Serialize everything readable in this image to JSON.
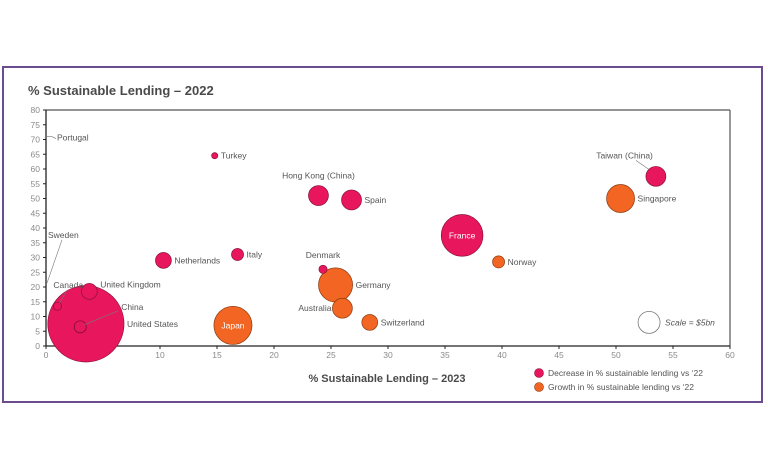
{
  "chart_data": {
    "type": "scatter",
    "subtype": "bubble",
    "title": "% Sustainable Lending – 2022",
    "ylabel": "% Sustainable Lending – 2022",
    "xlabel": "% Sustainable Lending – 2023",
    "xlim": [
      0,
      60
    ],
    "ylim": [
      0,
      80
    ],
    "xticks": [
      "0",
      "5",
      "10",
      "15",
      "20",
      "25",
      "30",
      "35",
      "40",
      "45",
      "50",
      "55",
      "60"
    ],
    "yticks": [
      "0",
      "5",
      "10",
      "15",
      "20",
      "25",
      "30",
      "35",
      "40",
      "45",
      "50",
      "55",
      "60",
      "65",
      "70",
      "75",
      "80"
    ],
    "grid": false,
    "colors": {
      "decrease": "#e8175d",
      "growth": "#f26522",
      "outline_decrease": "#8a1038",
      "outline_growth": "#8a3a10"
    },
    "legend": {
      "placement": "bottom-right",
      "entries": [
        {
          "key": "decrease",
          "label": "Decrease in % sustainable lending vs ‘22"
        },
        {
          "key": "growth",
          "label": "Growth in % sustainable lending vs ‘22"
        }
      ]
    },
    "scale_note": {
      "label": "Scale = $5bn",
      "size": 5
    },
    "points": [
      {
        "name": "Portugal",
        "x": 0,
        "y": 71,
        "size": 0,
        "group": "decrease",
        "label_pos": "leader-right"
      },
      {
        "name": "Sweden",
        "x": 0,
        "y": 21,
        "size": 0,
        "group": "decrease",
        "label_pos": "leader-up"
      },
      {
        "name": "Canada",
        "x": 1,
        "y": 13.5,
        "size": 0.7,
        "group": "decrease",
        "label_pos": "leader-up"
      },
      {
        "name": "United States",
        "x": 3.5,
        "y": 7.5,
        "size": 60,
        "group": "decrease",
        "label_pos": "right"
      },
      {
        "name": "China",
        "x": 3,
        "y": 6.5,
        "size": 1.5,
        "group": "decrease-hollow",
        "label_pos": "leader-upright"
      },
      {
        "name": "United Kingdom",
        "x": 3.8,
        "y": 18.5,
        "size": 2.6,
        "group": "decrease",
        "label_pos": "right-up"
      },
      {
        "name": "Netherlands",
        "x": 10.3,
        "y": 29,
        "size": 2.6,
        "group": "decrease",
        "label_pos": "right"
      },
      {
        "name": "Turkey",
        "x": 14.8,
        "y": 64.5,
        "size": 0.4,
        "group": "decrease",
        "label_pos": "right"
      },
      {
        "name": "Italy",
        "x": 16.8,
        "y": 31,
        "size": 1.5,
        "group": "decrease",
        "label_pos": "right"
      },
      {
        "name": "Japan",
        "x": 16.4,
        "y": 7,
        "size": 15,
        "group": "growth",
        "label_pos": "inside"
      },
      {
        "name": "Hong Kong (China)",
        "x": 23.9,
        "y": 51,
        "size": 4.1,
        "group": "decrease",
        "label_pos": "above"
      },
      {
        "name": "Spain",
        "x": 26.8,
        "y": 49.5,
        "size": 4.1,
        "group": "decrease",
        "label_pos": "right"
      },
      {
        "name": "Denmark",
        "x": 24.3,
        "y": 26,
        "size": 0.7,
        "group": "decrease",
        "label_pos": "above"
      },
      {
        "name": "Germany",
        "x": 25.4,
        "y": 20.7,
        "size": 12,
        "group": "growth",
        "label_pos": "right"
      },
      {
        "name": "Australia",
        "x": 26,
        "y": 12.8,
        "size": 4.1,
        "group": "growth",
        "label_pos": "left"
      },
      {
        "name": "Switzerland",
        "x": 28.4,
        "y": 8,
        "size": 2.6,
        "group": "growth",
        "label_pos": "right"
      },
      {
        "name": "France",
        "x": 36.5,
        "y": 37.5,
        "size": 18,
        "group": "decrease",
        "label_pos": "inside"
      },
      {
        "name": "Norway",
        "x": 39.7,
        "y": 28.5,
        "size": 1.5,
        "group": "growth",
        "label_pos": "right"
      },
      {
        "name": "Singapore",
        "x": 50.4,
        "y": 50,
        "size": 8.1,
        "group": "growth",
        "label_pos": "right"
      },
      {
        "name": "Taiwan (China)",
        "x": 53.5,
        "y": 57.5,
        "size": 4.1,
        "group": "decrease",
        "label_pos": "leader-upleft"
      }
    ]
  }
}
